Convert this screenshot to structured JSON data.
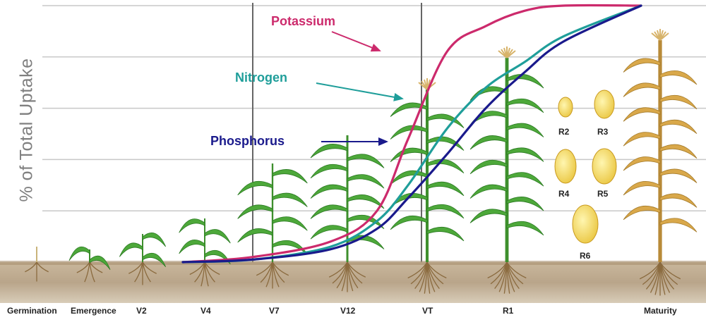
{
  "chart_data": {
    "type": "line",
    "title": "",
    "xlabel": "",
    "ylabel": "% of Total Uptake",
    "ylim": [
      0,
      100
    ],
    "grid": true,
    "categories": [
      "Germination",
      "Emergence",
      "V2",
      "V4",
      "V7",
      "V12",
      "VT",
      "R1",
      "Maturity"
    ],
    "kernel_stages": [
      "R2",
      "R3",
      "R4",
      "R5",
      "R6"
    ],
    "series": [
      {
        "name": "Potassium",
        "color": "#cc2a6c",
        "x": [
          2.1,
          3.0,
          4.0,
          4.6,
          5.0,
          5.5,
          6.0,
          6.5,
          7.0,
          8.0
        ],
        "values": [
          0,
          2,
          8,
          20,
          48,
          82,
          92,
          98,
          100,
          100
        ]
      },
      {
        "name": "Nitrogen",
        "color": "#1f9e9a",
        "x": [
          2.1,
          3.0,
          4.0,
          4.6,
          5.0,
          5.5,
          6.0,
          6.5,
          7.0,
          8.0
        ],
        "values": [
          0,
          1,
          6,
          16,
          30,
          52,
          68,
          78,
          88,
          100
        ]
      },
      {
        "name": "Phosphorus",
        "color": "#1a1a8c",
        "x": [
          2.1,
          3.0,
          4.0,
          4.6,
          5.0,
          5.5,
          6.0,
          6.5,
          7.0,
          8.0
        ],
        "values": [
          0,
          1,
          5,
          13,
          25,
          42,
          60,
          74,
          86,
          100
        ]
      }
    ]
  }
}
